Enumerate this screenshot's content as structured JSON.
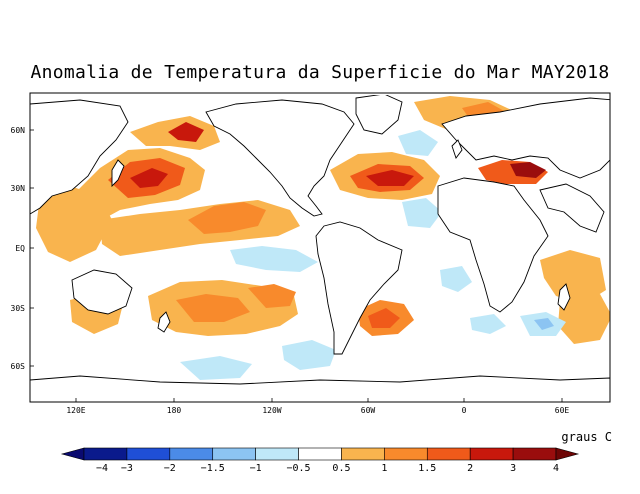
{
  "title": "Anomalia de Temperatura da Superficie do Mar MAY2018",
  "map": {
    "projection": "cylindrical equidistant",
    "region": "global ocean",
    "lon_center": "180",
    "y_ticks": [
      "60N",
      "30N",
      "EQ",
      "30S",
      "60S"
    ],
    "x_ticks": [
      "120E",
      "180",
      "120W",
      "60W",
      "0",
      "60E"
    ]
  },
  "colorbar": {
    "units": "graus C",
    "labels": [
      "−4",
      "−3",
      "−2",
      "−1.5",
      "−1",
      "−0.5",
      "0.5",
      "1",
      "1.5",
      "2",
      "3",
      "4"
    ],
    "colors": [
      "#0a1a8c",
      "#1f4fd6",
      "#4b8be8",
      "#8cc4f2",
      "#bfe8f8",
      "#ffffff",
      "#f9b44e",
      "#f88a2c",
      "#f05a1a",
      "#c8180c",
      "#9a0d0d"
    ],
    "low_color": "#0a0a70",
    "high_color": "#6e0505"
  }
}
